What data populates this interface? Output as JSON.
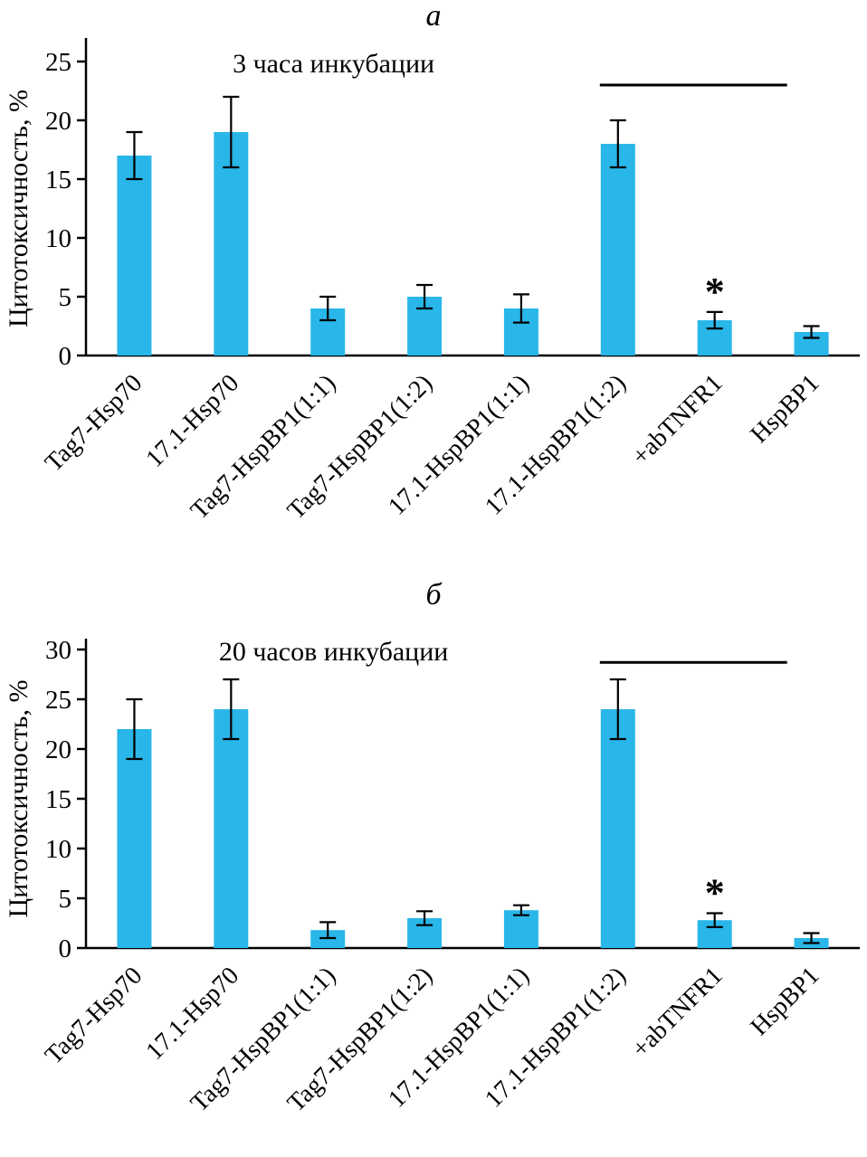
{
  "figure": {
    "bar_color": "#29B6E8",
    "axis_color": "#000000",
    "error_color": "#000000"
  },
  "chart_data": [
    {
      "type": "bar",
      "panel_label": "а",
      "title": "3 часа инкубации",
      "ylabel": "Цитотоксичность, %",
      "xlabel": "",
      "categories": [
        "Tag7-Hsp70",
        "17.1-Hsp70",
        "Tag7-HspBP1(1:1)",
        "Tag7-HspBP1(1:2)",
        "17.1-HspBP1(1:1)",
        "17.1-HspBP1(1:2)",
        "+abTNFR1",
        "HspBP1"
      ],
      "values": [
        17,
        19,
        4,
        5,
        4,
        18,
        3,
        2
      ],
      "errors": [
        2,
        3,
        1,
        1,
        1.2,
        2,
        0.7,
        0.5
      ],
      "ylim": [
        0,
        25
      ],
      "ytick_step": 5,
      "grid": false,
      "legend": null,
      "significance": {
        "asterisk_label": "*",
        "asterisk_index": 6,
        "bracket": {
          "from_index": 5,
          "to_index": 6,
          "y": 23
        }
      }
    },
    {
      "type": "bar",
      "panel_label": "б",
      "title": "20 часов инкубации",
      "ylabel": "Цитотоксичность, %",
      "xlabel": "",
      "categories": [
        "Tag7-Hsp70",
        "17.1-Hsp70",
        "Tag7-HspBP1(1:1)",
        "Tag7-HspBP1(1:2)",
        "17.1-HspBP1(1:1)",
        "17.1-HspBP1(1:2)",
        "+abTNFR1",
        "HspBP1"
      ],
      "values": [
        22,
        24,
        1.8,
        3,
        3.8,
        24,
        2.8,
        1
      ],
      "errors": [
        3,
        3,
        0.8,
        0.7,
        0.5,
        3,
        0.7,
        0.5
      ],
      "ylim": [
        0,
        30
      ],
      "ytick_step": 5,
      "grid": false,
      "legend": null,
      "significance": {
        "asterisk_label": "*",
        "asterisk_index": 6,
        "bracket": {
          "from_index": 5,
          "to_index": 6,
          "y": 28.7
        }
      }
    }
  ]
}
